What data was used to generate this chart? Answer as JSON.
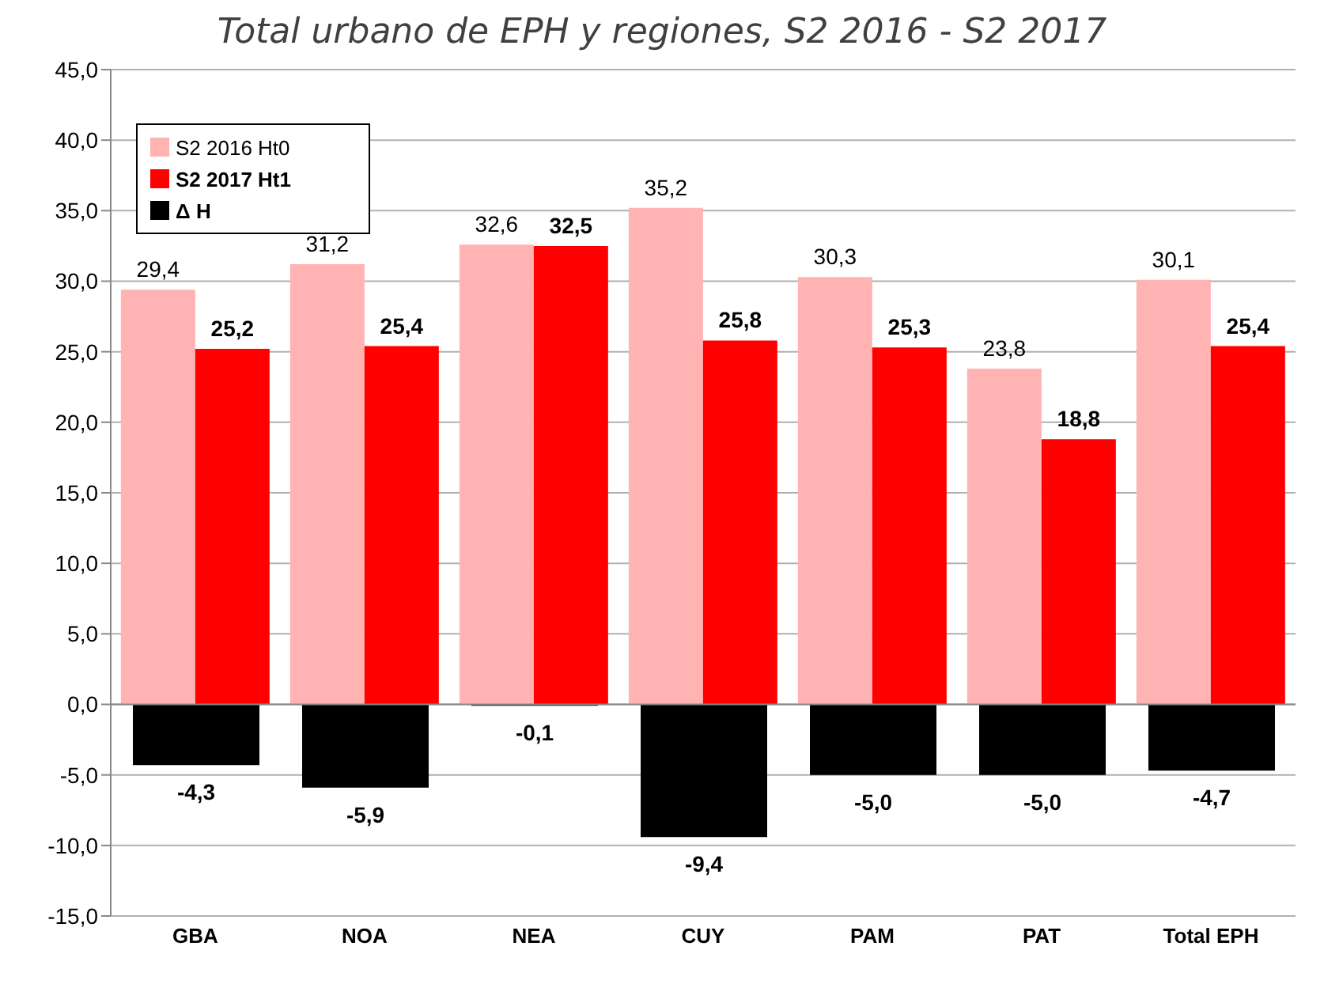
{
  "chart_data": {
    "type": "bar",
    "title": "Total urbano de EPH y regiones, S2 2016 - S2 2017",
    "categories": [
      "GBA",
      "NOA",
      "NEA",
      "CUY",
      "PAM",
      "PAT",
      "Total EPH"
    ],
    "series": [
      {
        "name": "S2 2016 Ht0",
        "color": "#ffb3b3",
        "values": [
          29.4,
          31.2,
          32.6,
          35.2,
          30.3,
          23.8,
          30.1
        ],
        "value_labels": [
          "29,4",
          "31,2",
          "32,6",
          "35,2",
          "30,3",
          "23,8",
          "30,1"
        ]
      },
      {
        "name": "S2 2017 Ht1",
        "color": "#ff0000",
        "values": [
          25.2,
          25.4,
          32.5,
          25.8,
          25.3,
          18.8,
          25.4
        ],
        "value_labels": [
          "25,2",
          "25,4",
          "32,5",
          "25,8",
          "25,3",
          "18,8",
          "25,4"
        ]
      },
      {
        "name": "Δ H",
        "color": "#000000",
        "values": [
          -4.3,
          -5.9,
          -0.1,
          -9.4,
          -5.0,
          -5.0,
          -4.7
        ],
        "value_labels": [
          "-4,3",
          "-5,9",
          "-0,1",
          "-9,4",
          "-5,0",
          "-5,0",
          "-4,7"
        ]
      }
    ],
    "ylim": [
      -15,
      45
    ],
    "yticks": [
      {
        "value": -15,
        "label": "-15,0"
      },
      {
        "value": -10,
        "label": "-10,0"
      },
      {
        "value": -5,
        "label": "-5,0"
      },
      {
        "value": 0,
        "label": "0,0"
      },
      {
        "value": 5,
        "label": "5,0"
      },
      {
        "value": 10,
        "label": "10,0"
      },
      {
        "value": 15,
        "label": "15,0"
      },
      {
        "value": 20,
        "label": "20,0"
      },
      {
        "value": 25,
        "label": "25,0"
      },
      {
        "value": 30,
        "label": "30,0"
      },
      {
        "value": 35,
        "label": "35,0"
      },
      {
        "value": 40,
        "label": "40,0"
      },
      {
        "value": 45,
        "label": "45,0"
      }
    ],
    "grid": "y",
    "legend": "top left"
  }
}
